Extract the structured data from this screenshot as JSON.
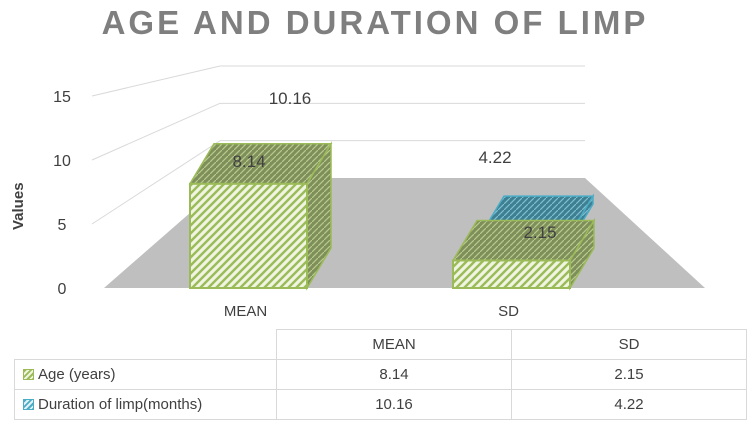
{
  "chart_data": {
    "type": "bar",
    "title": "AGE AND DURATION OF LIMP",
    "ylabel": "Values",
    "xlabel": "",
    "categories": [
      "MEAN",
      "SD"
    ],
    "yticks": [
      "0",
      "5",
      "10",
      "15"
    ],
    "ylim": [
      0,
      15
    ],
    "series": [
      {
        "name": "Age (years)",
        "values": [
          8.14,
          2.15
        ],
        "labels": [
          "8.14",
          "2.15"
        ],
        "color": "#9bbb59"
      },
      {
        "name": "Duration of limp(months)",
        "values": [
          10.16,
          4.22
        ],
        "labels": [
          "10.16",
          "4.22"
        ],
        "color": "#4bacc6"
      }
    ],
    "legend": "data-table",
    "grid": true
  },
  "table": {
    "headers": [
      "MEAN",
      "SD"
    ],
    "rows": [
      {
        "label": "Age (years)",
        "cells": [
          "8.14",
          "2.15"
        ]
      },
      {
        "label": "Duration of limp(months)",
        "cells": [
          "10.16",
          "4.22"
        ]
      }
    ]
  }
}
